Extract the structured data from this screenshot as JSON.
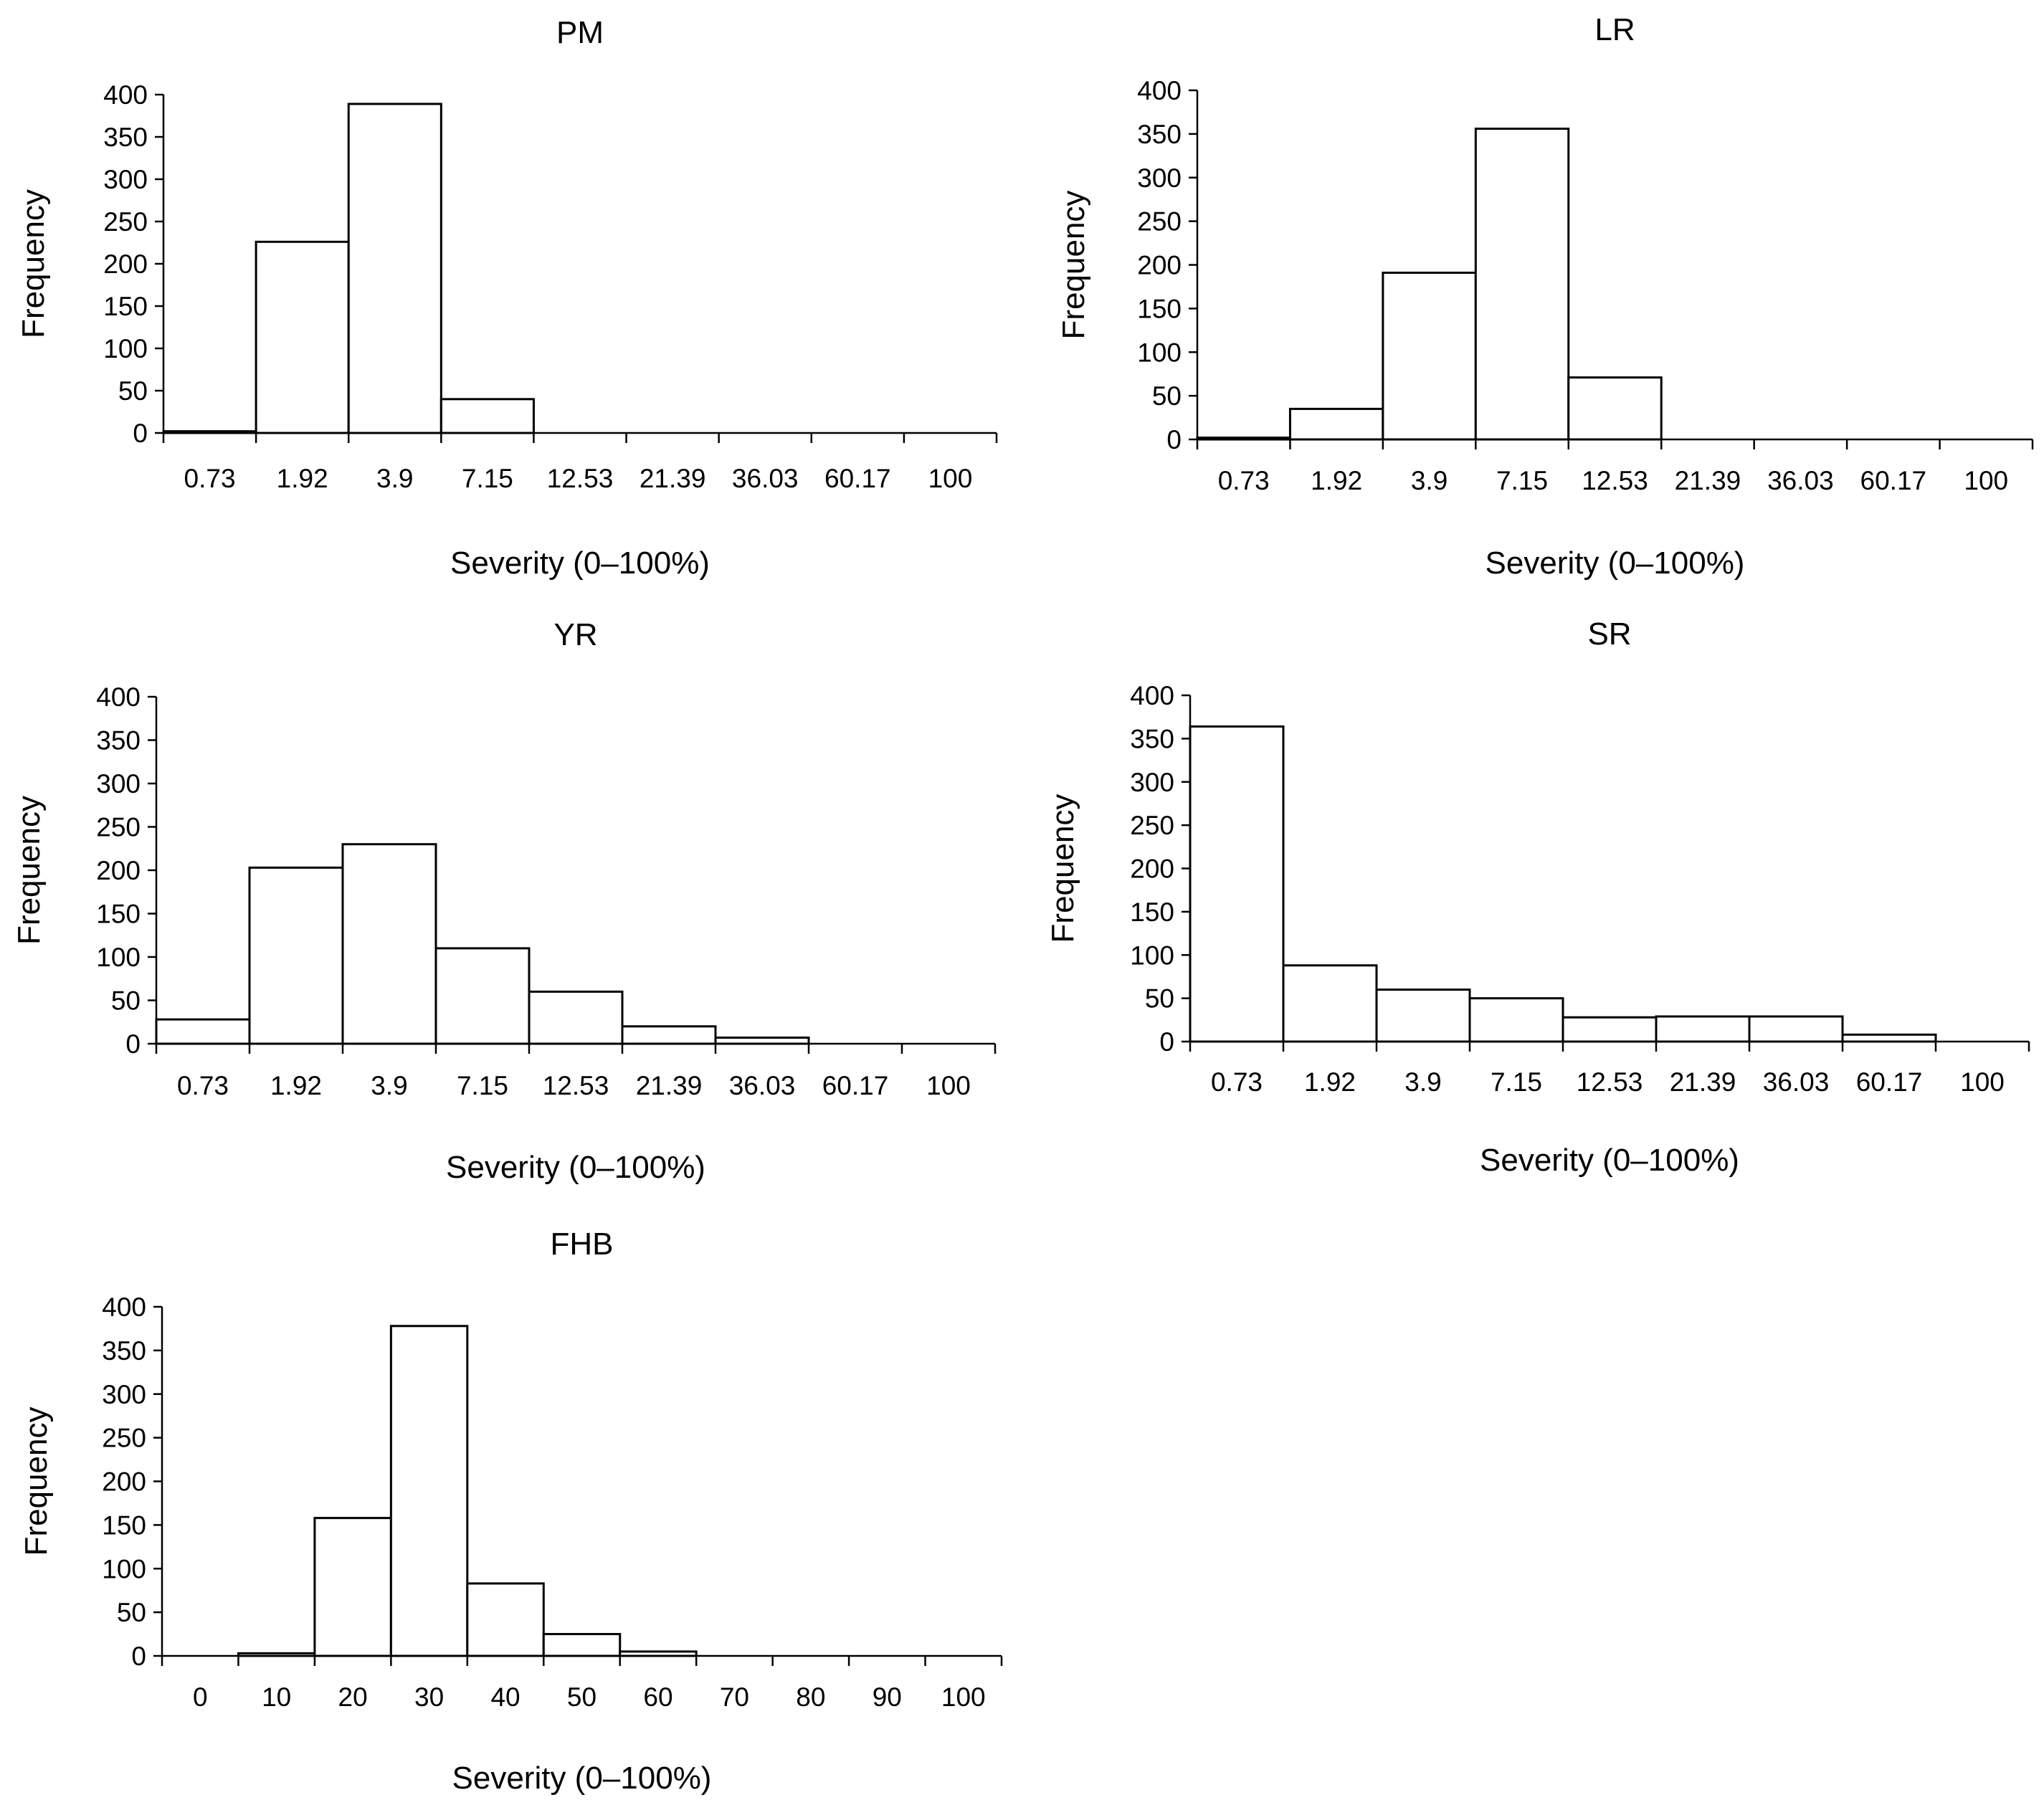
{
  "chart_data": [
    {
      "id": "pm",
      "type": "bar",
      "title": "PM",
      "xlabel": "Severity (0–100%)",
      "ylabel": "Frequency",
      "ylim": [
        0,
        400
      ],
      "yticks": [
        "0",
        "50",
        "100",
        "150",
        "200",
        "250",
        "300",
        "350",
        "400"
      ],
      "categories": [
        "0.73",
        "1.92",
        "3.9",
        "7.15",
        "12.53",
        "21.39",
        "36.03",
        "60.17",
        "100"
      ],
      "values": [
        2,
        226,
        389,
        40,
        0,
        0,
        0,
        0,
        0
      ]
    },
    {
      "id": "lr",
      "type": "bar",
      "title": "LR",
      "xlabel": "Severity (0–100%)",
      "ylabel": "Frequency",
      "ylim": [
        0,
        400
      ],
      "yticks": [
        "0",
        "50",
        "100",
        "150",
        "200",
        "250",
        "300",
        "350",
        "400"
      ],
      "categories": [
        "0.73",
        "1.92",
        "3.9",
        "7.15",
        "12.53",
        "21.39",
        "36.03",
        "60.17",
        "100"
      ],
      "values": [
        2,
        35,
        191,
        356,
        71,
        0,
        0,
        0,
        0
      ]
    },
    {
      "id": "yr",
      "type": "bar",
      "title": "YR",
      "xlabel": "Severity (0–100%)",
      "ylabel": "Frequency",
      "ylim": [
        0,
        400
      ],
      "yticks": [
        "0",
        "50",
        "100",
        "150",
        "200",
        "250",
        "300",
        "350",
        "400"
      ],
      "categories": [
        "0.73",
        "1.92",
        "3.9",
        "7.15",
        "12.53",
        "21.39",
        "36.03",
        "60.17",
        "100"
      ],
      "values": [
        28,
        203,
        230,
        110,
        60,
        20,
        7,
        0,
        0
      ]
    },
    {
      "id": "sr",
      "type": "bar",
      "title": "SR",
      "xlabel": "Severity (0–100%)",
      "ylabel": "Frequency",
      "ylim": [
        0,
        400
      ],
      "yticks": [
        "0",
        "50",
        "100",
        "150",
        "200",
        "250",
        "300",
        "350",
        "400"
      ],
      "categories": [
        "0.73",
        "1.92",
        "3.9",
        "7.15",
        "12.53",
        "21.39",
        "36.03",
        "60.17",
        "100"
      ],
      "values": [
        364,
        88,
        60,
        50,
        28,
        29,
        29,
        8,
        0
      ]
    },
    {
      "id": "fhb",
      "type": "bar",
      "title": "FHB",
      "xlabel": "Severity (0–100%)",
      "ylabel": "Frequency",
      "ylim": [
        0,
        400
      ],
      "yticks": [
        "0",
        "50",
        "100",
        "150",
        "200",
        "250",
        "300",
        "350",
        "400"
      ],
      "categories": [
        "0",
        "10",
        "20",
        "30",
        "40",
        "50",
        "60",
        "70",
        "80",
        "90",
        "100"
      ],
      "values": [
        0,
        3,
        158,
        378,
        83,
        25,
        5,
        0,
        0,
        0,
        0
      ]
    }
  ]
}
